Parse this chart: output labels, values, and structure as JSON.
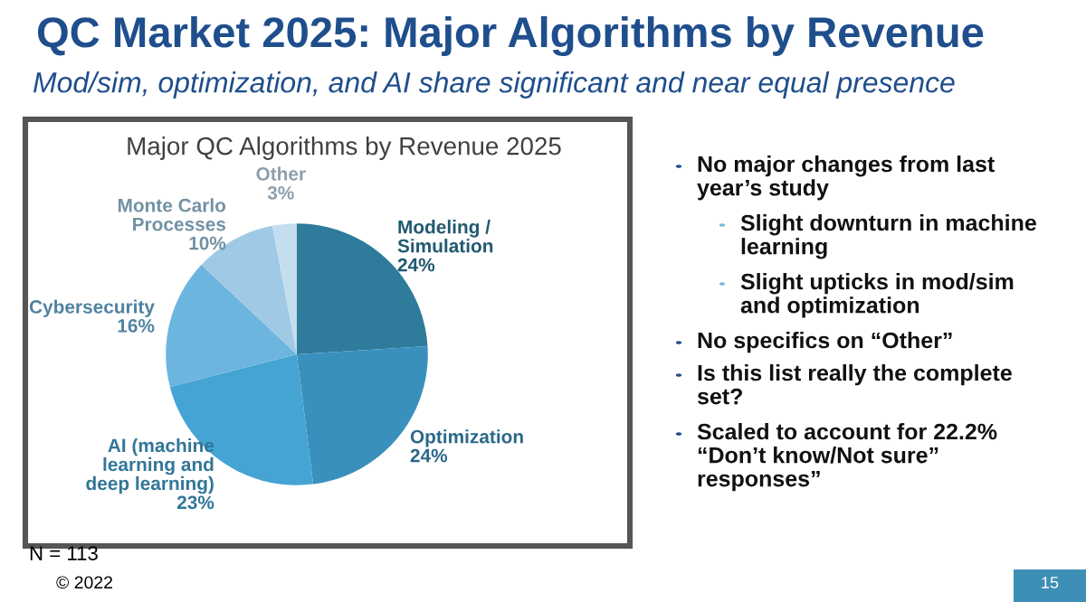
{
  "chart_data": {
    "type": "pie",
    "title": "QC Market 2025: Major Algorithms by Revenue",
    "subtitle": "Mod/sim, optimization, and AI share significant and near equal presence",
    "categories": [
      "Modeling /\nSimulation",
      "Optimization",
      "AI (machine\nlearning and\ndeep learning)",
      "Cybersecurity",
      "Monte Carlo\nProcesses",
      "Other"
    ],
    "values": [
      24,
      24,
      23,
      16,
      10,
      3
    ],
    "colors": [
      "#2e7b9c",
      "#3a90bd",
      "#45a4d3",
      "#6cb5df",
      "#9fc9e4",
      "#c4ddef"
    ],
    "value_labels": [
      "24%",
      "24%",
      "23%",
      "16%",
      "10%",
      "3%"
    ],
    "annotations": [
      "Major QC Algorithms by Revenue 2025",
      "N = 113",
      "© 2022",
      "15",
      "No major changes from last\nyear’s study",
      "Slight downturn in machine\nlearning",
      "Slight upticks in mod/sim\nand optimization",
      "No specifics on “Other”",
      "Is this list really the complete\nset?",
      "Scaled to account for 22.2%\n“Don’t know/Not sure”\nresponses”"
    ]
  }
}
